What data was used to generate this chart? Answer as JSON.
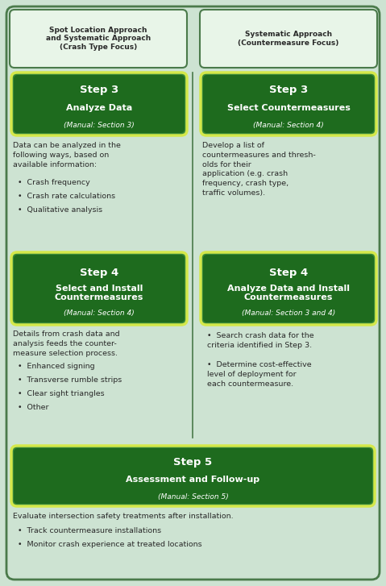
{
  "bg_color": "#cde3d2",
  "outer_border_color": "#4a7a4a",
  "dark_green_outer": "#3a8a3a",
  "dark_green_inner": "#1e6b1e",
  "light_green_border": "#a0d0a0",
  "yellow_green_border": "#d4e84a",
  "text_dark": "#2a2a2a",
  "text_white": "#ffffff",
  "divider_color": "#4a7a4a",
  "header_bg": "#e8f5e8",
  "header_border": "#4a7a4a",
  "left_header": "Spot Location Approach\nand Systematic Approach\n(Crash Type Focus)",
  "right_header": "Systematic Approach\n(Countermeasure Focus)",
  "step3_left_title": "Step 3",
  "step3_left_sub": "Analyze Data",
  "step3_left_manual": "(Manual: Section 3)",
  "step3_left_body": "Data can be analyzed in the\nfollowing ways, based on\navailable information:",
  "step3_left_bullets": [
    "Crash frequency",
    "Crash rate calculations",
    "Qualitative analysis"
  ],
  "step3_right_title": "Step 3",
  "step3_right_sub": "Select Countermeasures",
  "step3_right_manual": "(Manual: Section 4)",
  "step3_right_body": "Develop a list of\ncountermeasures and thresh-\nolds for their\napplication (e.g. crash\nfrequency, crash type,\ntraffic volumes).",
  "step4_left_title": "Step 4",
  "step4_left_sub": "Select and Install\nCountermeasures",
  "step4_left_manual": "(Manual: Section 4)",
  "step4_left_body": "Details from crash data and\nanalysis feeds the counter-\nmeasure selection process.",
  "step4_left_bullets": [
    "Enhanced signing",
    "Transverse rumble strips",
    "Clear sight triangles",
    "Other"
  ],
  "step4_right_title": "Step 4",
  "step4_right_sub": "Analyze Data and Install\nCountermeasures",
  "step4_right_manual": "(Manual: Section 3 and 4)",
  "step4_right_bullet1": "Search crash data for the\ncriteria identified in Step 3.",
  "step4_right_bullet2": "Determine cost-effective\nlevel of deployment for\neach countermeasure.",
  "step5_title": "Step 5",
  "step5_sub": "Assessment and Follow-up",
  "step5_manual": "(Manual: Section 5)",
  "step5_body": "Evaluate intersection safety treatments after installation.",
  "step5_bullet1": "Track countermeasure installations",
  "step5_bullet2": "Monitor crash experience at treated locations",
  "figw": 4.79,
  "figh": 7.27,
  "dpi": 100
}
